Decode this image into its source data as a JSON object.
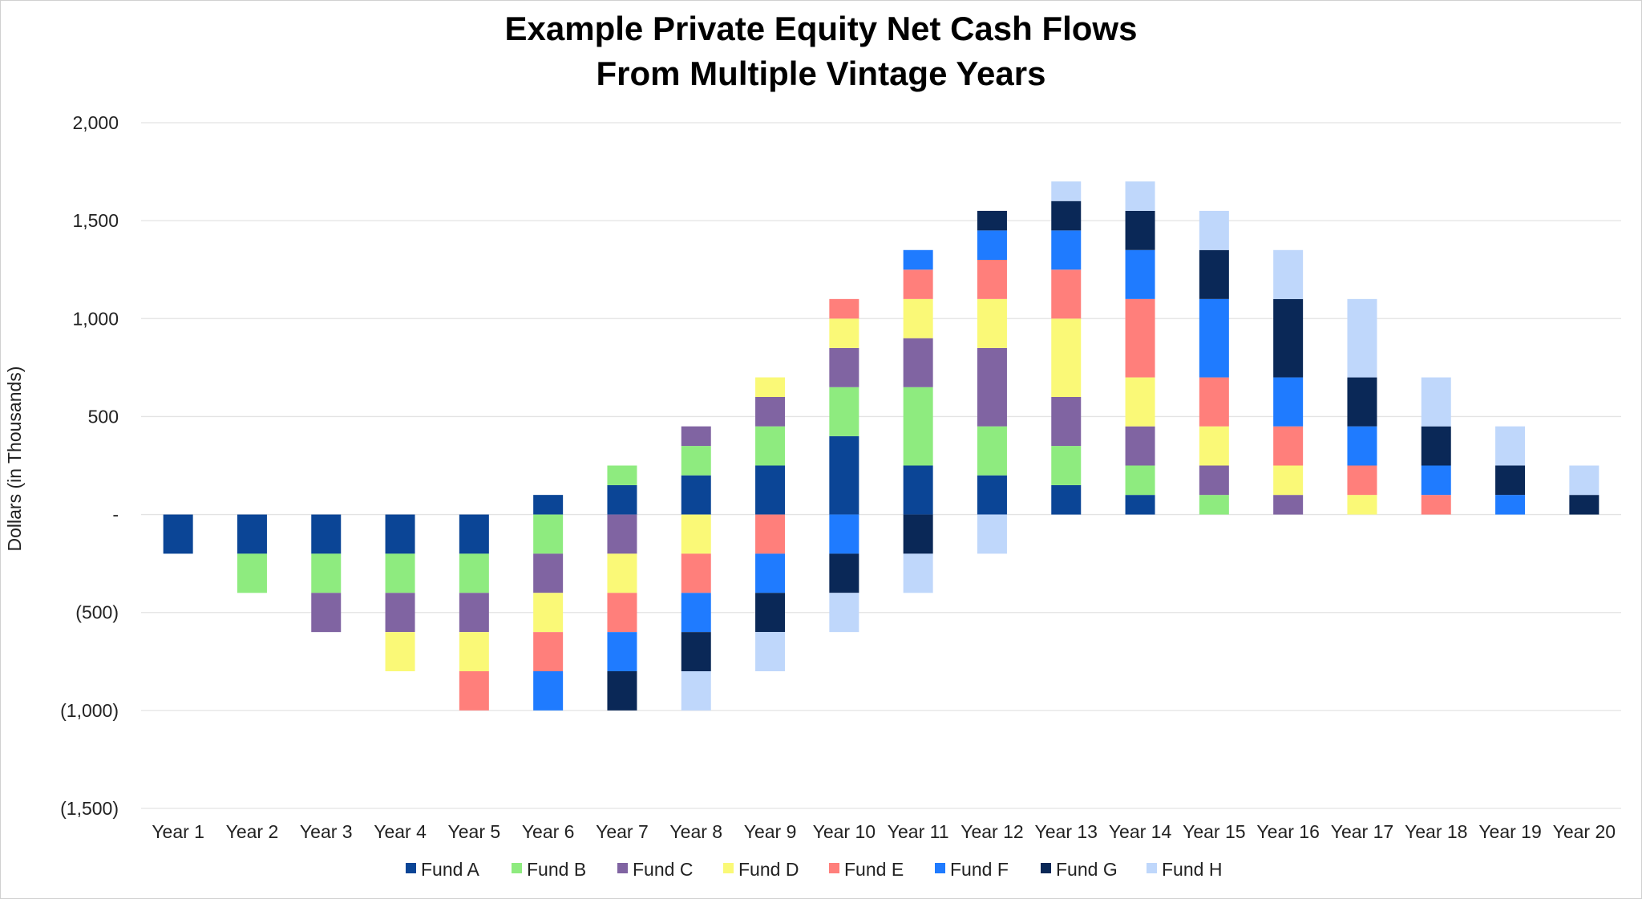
{
  "chart_data": {
    "type": "bar",
    "stacked": true,
    "title_line1": "Example Private Equity Net Cash Flows",
    "title_line2": "From Multiple Vintage Years",
    "xlabel": "",
    "ylabel": "Dollars (in Thousands)",
    "ylim": [
      -1500,
      2000
    ],
    "yticks": [
      2000,
      1500,
      1000,
      500,
      0,
      -500,
      -1000,
      -1500
    ],
    "ytick_labels": [
      "2,000",
      "1,500",
      "1,000",
      "500",
      "-",
      "(500)",
      "(1,000)",
      "(1,500)"
    ],
    "grid": true,
    "legend_position": "bottom",
    "categories": [
      "Year 1",
      "Year 2",
      "Year 3",
      "Year 4",
      "Year 5",
      "Year 6",
      "Year 7",
      "Year 8",
      "Year 9",
      "Year 10",
      "Year 11",
      "Year 12",
      "Year 13",
      "Year 14",
      "Year 15",
      "Year 16",
      "Year 17",
      "Year 18",
      "Year 19",
      "Year 20"
    ],
    "series": [
      {
        "name": "Fund A",
        "color": "#0B4596",
        "values": [
          -200,
          -200,
          -200,
          -200,
          -200,
          100,
          150,
          200,
          250,
          400,
          250,
          200,
          150,
          100,
          0,
          0,
          0,
          0,
          0,
          0
        ]
      },
      {
        "name": "Fund B",
        "color": "#8EEB7F",
        "values": [
          0,
          -200,
          -200,
          -200,
          -200,
          -200,
          100,
          150,
          200,
          250,
          400,
          250,
          200,
          150,
          100,
          0,
          0,
          0,
          0,
          0
        ]
      },
      {
        "name": "Fund C",
        "color": "#8064A2",
        "values": [
          0,
          0,
          -200,
          -200,
          -200,
          -200,
          -200,
          100,
          150,
          200,
          250,
          400,
          250,
          200,
          150,
          100,
          0,
          0,
          0,
          0
        ]
      },
      {
        "name": "Fund D",
        "color": "#FAF977",
        "values": [
          0,
          0,
          0,
          -200,
          -200,
          -200,
          -200,
          -200,
          100,
          150,
          200,
          250,
          400,
          250,
          200,
          150,
          100,
          0,
          0,
          0
        ]
      },
      {
        "name": "Fund E",
        "color": "#FF7F7B",
        "values": [
          0,
          0,
          0,
          0,
          -200,
          -200,
          -200,
          -200,
          -200,
          100,
          150,
          200,
          250,
          400,
          250,
          200,
          150,
          100,
          0,
          0
        ]
      },
      {
        "name": "Fund F",
        "color": "#1F7BFF",
        "values": [
          0,
          0,
          0,
          0,
          0,
          -200,
          -200,
          -200,
          -200,
          -200,
          100,
          150,
          200,
          250,
          400,
          250,
          200,
          150,
          100,
          0
        ]
      },
      {
        "name": "Fund G",
        "color": "#0A2857",
        "values": [
          0,
          0,
          0,
          0,
          0,
          0,
          -200,
          -200,
          -200,
          -200,
          -200,
          100,
          150,
          200,
          250,
          400,
          250,
          200,
          150,
          100
        ]
      },
      {
        "name": "Fund H",
        "color": "#BFD7FB",
        "values": [
          0,
          0,
          0,
          0,
          0,
          0,
          0,
          -200,
          -200,
          -200,
          -200,
          -200,
          100,
          150,
          200,
          250,
          400,
          250,
          200,
          150
        ]
      }
    ]
  }
}
